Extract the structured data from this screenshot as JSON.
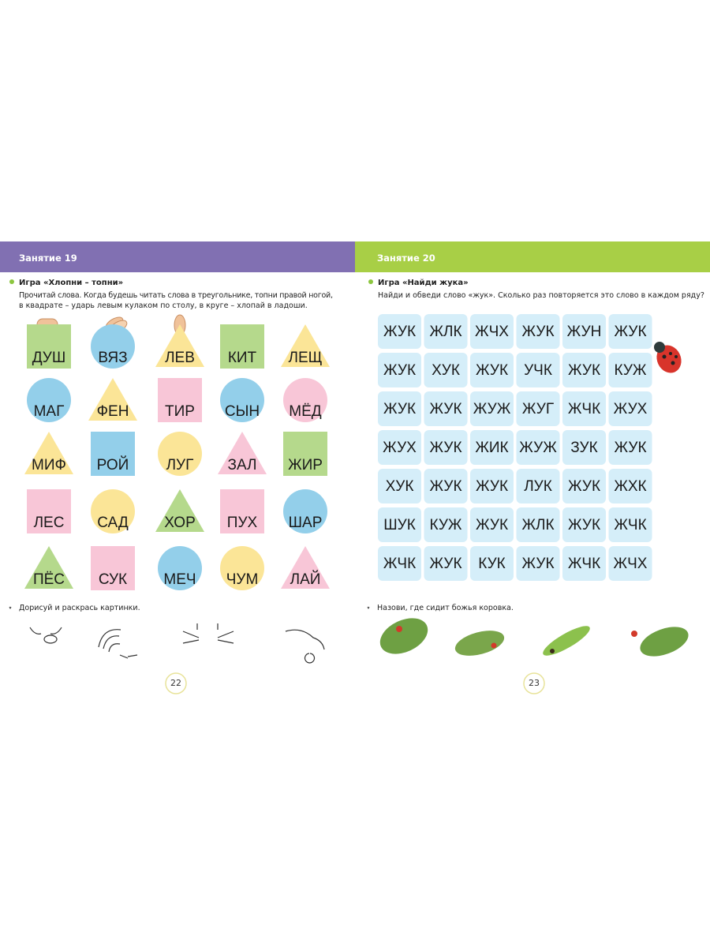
{
  "left_page": {
    "header": "Занятие 19",
    "task_title": "Игра «Хлопни – топни»",
    "instructions": [
      "Прочитай слова. Когда будешь читать слова в треугольнике, топни правой ногой,",
      "в квадрате – ударь левым кулаком по столу, в круге – хлопай в ладоши."
    ],
    "shapes": [
      [
        {
          "word": "ДУШ",
          "shape": "square",
          "color": "#b5d98c"
        },
        {
          "word": "ВЯЗ",
          "shape": "circle",
          "color": "#93cfea"
        },
        {
          "word": "ЛЕВ",
          "shape": "triangle",
          "color": "#fbe597"
        },
        {
          "word": "КИТ",
          "shape": "square",
          "color": "#b5d98c"
        },
        {
          "word": "ЛЕЩ",
          "shape": "triangle",
          "color": "#fbe597"
        }
      ],
      [
        {
          "word": "МАГ",
          "shape": "circle",
          "color": "#93cfea"
        },
        {
          "word": "ФЕН",
          "shape": "triangle",
          "color": "#fbe597"
        },
        {
          "word": "ТИР",
          "shape": "square",
          "color": "#f8c6d7"
        },
        {
          "word": "СЫН",
          "shape": "circle",
          "color": "#93cfea"
        },
        {
          "word": "МЁД",
          "shape": "circle",
          "color": "#f8c6d7"
        }
      ],
      [
        {
          "word": "МИФ",
          "shape": "triangle",
          "color": "#fbe597"
        },
        {
          "word": "РОЙ",
          "shape": "square",
          "color": "#93cfea"
        },
        {
          "word": "ЛУГ",
          "shape": "circle",
          "color": "#fbe597"
        },
        {
          "word": "ЗАЛ",
          "shape": "triangle",
          "color": "#f8c6d7"
        },
        {
          "word": "ЖИР",
          "shape": "square",
          "color": "#b5d98c"
        }
      ],
      [
        {
          "word": "ЛЕС",
          "shape": "square",
          "color": "#f8c6d7"
        },
        {
          "word": "САД",
          "shape": "circle",
          "color": "#fbe597"
        },
        {
          "word": "ХОР",
          "shape": "triangle",
          "color": "#b5d98c"
        },
        {
          "word": "ПУХ",
          "shape": "square",
          "color": "#f8c6d7"
        },
        {
          "word": "ШАР",
          "shape": "circle",
          "color": "#93cfea"
        }
      ],
      [
        {
          "word": "ПЁС",
          "shape": "triangle",
          "color": "#b5d98c"
        },
        {
          "word": "СУК",
          "shape": "square",
          "color": "#f8c6d7"
        },
        {
          "word": "МЕЧ",
          "shape": "circle",
          "color": "#93cfea"
        },
        {
          "word": "ЧУМ",
          "shape": "circle",
          "color": "#fbe597"
        },
        {
          "word": "ЛАЙ",
          "shape": "triangle",
          "color": "#f8c6d7"
        }
      ]
    ],
    "bonus_task": "Дорисуй и раскрась картинки.",
    "page_number": 22
  },
  "right_page": {
    "header": "Занятие 20",
    "task_title": "Игра «Найди жука»",
    "instructions": [
      "Найди и обведи слово «жук». Сколько раз повторяется это слово в каждом ряду?"
    ],
    "grid": [
      [
        "ЖУК",
        "ЖЛК",
        "ЖЧХ",
        "ЖУК",
        "ЖУН",
        "ЖУК"
      ],
      [
        "ЖУК",
        "ХУК",
        "ЖУК",
        "УЧК",
        "ЖУК",
        "КУЖ"
      ],
      [
        "ЖУК",
        "ЖУК",
        "ЖУЖ",
        "ЖУГ",
        "ЖЧК",
        "ЖУХ"
      ],
      [
        "ЖУХ",
        "ЖУК",
        "ЖИК",
        "ЖУЖ",
        "ЗУК",
        "ЖУК"
      ],
      [
        "ХУК",
        "ЖУК",
        "ЖУК",
        "ЛУК",
        "ЖУК",
        "ЖХК"
      ],
      [
        "ШУК",
        "КУЖ",
        "ЖУК",
        "ЖЛК",
        "ЖУК",
        "ЖЧК"
      ],
      [
        "ЖЧК",
        "ЖУК",
        "КУК",
        "ЖУК",
        "ЖЧК",
        "ЖЧХ"
      ]
    ],
    "bonus_task": "Назови, где сидит божья коровка.",
    "page_number": 23
  }
}
